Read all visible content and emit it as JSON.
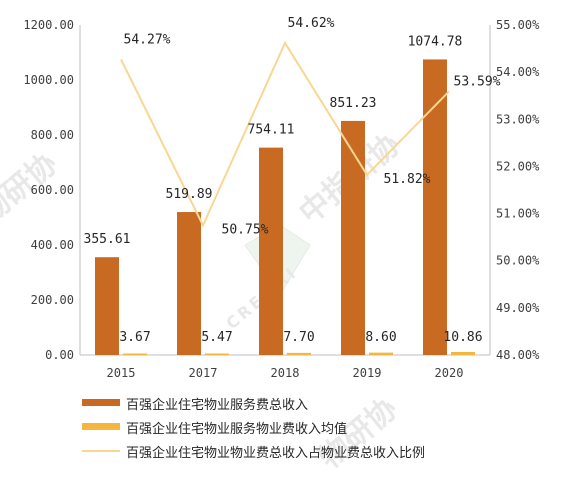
{
  "chart_data": {
    "type": "bar",
    "categories": [
      "2015",
      "2017",
      "2018",
      "2019",
      "2020"
    ],
    "series": [
      {
        "name": "百强企业住宅物业服务费总收入",
        "type": "bar",
        "axis": "left",
        "color": "#C86A22",
        "values": [
          355.61,
          519.89,
          754.11,
          851.23,
          1074.78
        ],
        "labels": [
          "355.61",
          "519.89",
          "754.11",
          "851.23",
          "1074.78"
        ]
      },
      {
        "name": "百强企业住宅物业服务物业费收入均值",
        "type": "bar",
        "axis": "left",
        "color": "#F5B63D",
        "values": [
          3.67,
          5.47,
          7.7,
          8.6,
          10.86
        ],
        "labels": [
          "3.67",
          "5.47",
          "7.70",
          "8.60",
          "10.86"
        ]
      },
      {
        "name": "百强企业住宅物业物业费总收入占物业费总收入比例",
        "type": "line",
        "axis": "right",
        "color": "#F9D792",
        "values": [
          54.27,
          50.75,
          54.62,
          51.82,
          53.59
        ],
        "labels": [
          "54.27%",
          "50.75%",
          "54.62%",
          "51.82%",
          "53.59%"
        ]
      }
    ],
    "y_left": {
      "range": [
        0,
        1200
      ],
      "ticks": [
        "0.00",
        "200.00",
        "400.00",
        "600.00",
        "800.00",
        "1000.00",
        "1200.00"
      ]
    },
    "y_right": {
      "range": [
        48,
        55
      ],
      "ticks": [
        "48.00%",
        "49.00%",
        "50.00%",
        "51.00%",
        "52.00%",
        "53.00%",
        "54.00%",
        "55.00%"
      ]
    },
    "legend_position": "bottom",
    "grid": false
  },
  "watermark": {
    "texts": [
      "物研协",
      "中指研协",
      "物研协"
    ],
    "logo_text": "CREMRI"
  }
}
